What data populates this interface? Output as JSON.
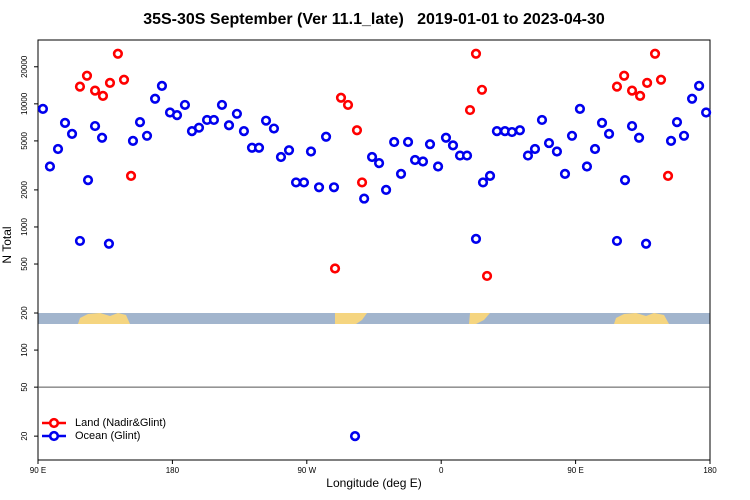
{
  "chart_data": {
    "type": "scatter",
    "title": "35S-30S September (Ver 11.1_late)   2019-01-01 to 2023-04-30",
    "xlabel": "Longitude (deg E)",
    "ylabel": "N Total",
    "xlim": [
      90,
      540
    ],
    "ylim": [
      12.8,
      33000
    ],
    "ylog": true,
    "xticks": [
      {
        "value": 90,
        "label": "90 E"
      },
      180,
      {
        "value": 270,
        "label": "90 W"
      },
      {
        "value": 360,
        "label": "0"
      },
      {
        "value": 450,
        "label": "90 E"
      },
      {
        "value": 540,
        "label": "180"
      }
    ],
    "yticks": [
      20,
      50,
      100,
      200,
      500,
      1000,
      2000,
      5000,
      10000,
      20000
    ],
    "hline": 50,
    "legend": "lower left",
    "series": [
      {
        "name": "Land (Nadir&Glint)",
        "color": "#ff0000",
        "x": [
          118.1,
          122.8,
          128.2,
          133.5,
          138.2,
          143.5,
          147.6,
          152.3,
          288.9,
          292.9,
          297.6,
          303.6,
          307.0,
          379.3,
          383.3,
          387.3,
          390.7,
          477.7,
          482.5,
          487.8,
          493.2,
          497.9,
          503.2,
          507.2,
          511.9
        ],
        "values": [
          13800,
          16900,
          12800,
          11600,
          14800,
          25500,
          15700,
          2600,
          460,
          11200,
          9800,
          6100,
          2300,
          8900,
          25500,
          13000,
          400,
          13800,
          16900,
          12800,
          11600,
          14800,
          25500,
          15700,
          2600
        ]
      },
      {
        "name": "Ocean (Glint)",
        "color": "#0000ee",
        "x": [
          93.3,
          98.0,
          103.4,
          108.1,
          112.8,
          118.1,
          123.5,
          128.2,
          132.9,
          137.5,
          153.6,
          158.3,
          163.0,
          168.4,
          173.0,
          178.4,
          183.1,
          188.4,
          193.1,
          197.8,
          203.2,
          207.8,
          213.2,
          217.9,
          223.2,
          227.9,
          233.3,
          238.0,
          242.7,
          248.0,
          252.7,
          258.1,
          262.8,
          268.1,
          272.8,
          278.2,
          282.9,
          288.2,
          302.3,
          308.4,
          313.7,
          318.4,
          323.1,
          328.5,
          333.1,
          337.8,
          342.5,
          347.8,
          352.5,
          357.9,
          363.2,
          367.9,
          372.6,
          377.3,
          383.3,
          388.0,
          392.7,
          397.3,
          402.7,
          407.4,
          412.7,
          418.1,
          422.8,
          427.5,
          432.2,
          437.5,
          442.9,
          447.6,
          452.9,
          457.6,
          463.0,
          467.7,
          472.4,
          477.7,
          483.1,
          487.8,
          492.5,
          497.2,
          513.9,
          517.9,
          522.6,
          528.0,
          532.7,
          537.4
        ],
        "values": [
          9100,
          3100,
          4300,
          7000,
          5700,
          770,
          2400,
          6600,
          5300,
          730,
          5000,
          7100,
          5500,
          11000,
          14000,
          8500,
          8100,
          9800,
          6000,
          6400,
          7400,
          7400,
          9800,
          6700,
          8300,
          6000,
          4400,
          4400,
          7300,
          6300,
          3700,
          4200,
          2300,
          2300,
          4100,
          2100,
          5400,
          2100,
          20,
          1700,
          3700,
          3300,
          2000,
          4900,
          2700,
          4900,
          3500,
          3400,
          4700,
          3100,
          5300,
          4600,
          3800,
          3800,
          800,
          2300,
          2600,
          6000,
          6000,
          5900,
          6100,
          3800,
          4300,
          7400,
          4800,
          4100,
          2700,
          5500,
          9100,
          3100,
          4300,
          7000,
          5700,
          770,
          2400,
          6600,
          5300,
          730,
          5000,
          7100,
          5500,
          11000,
          14000,
          8500
        ]
      }
    ]
  }
}
